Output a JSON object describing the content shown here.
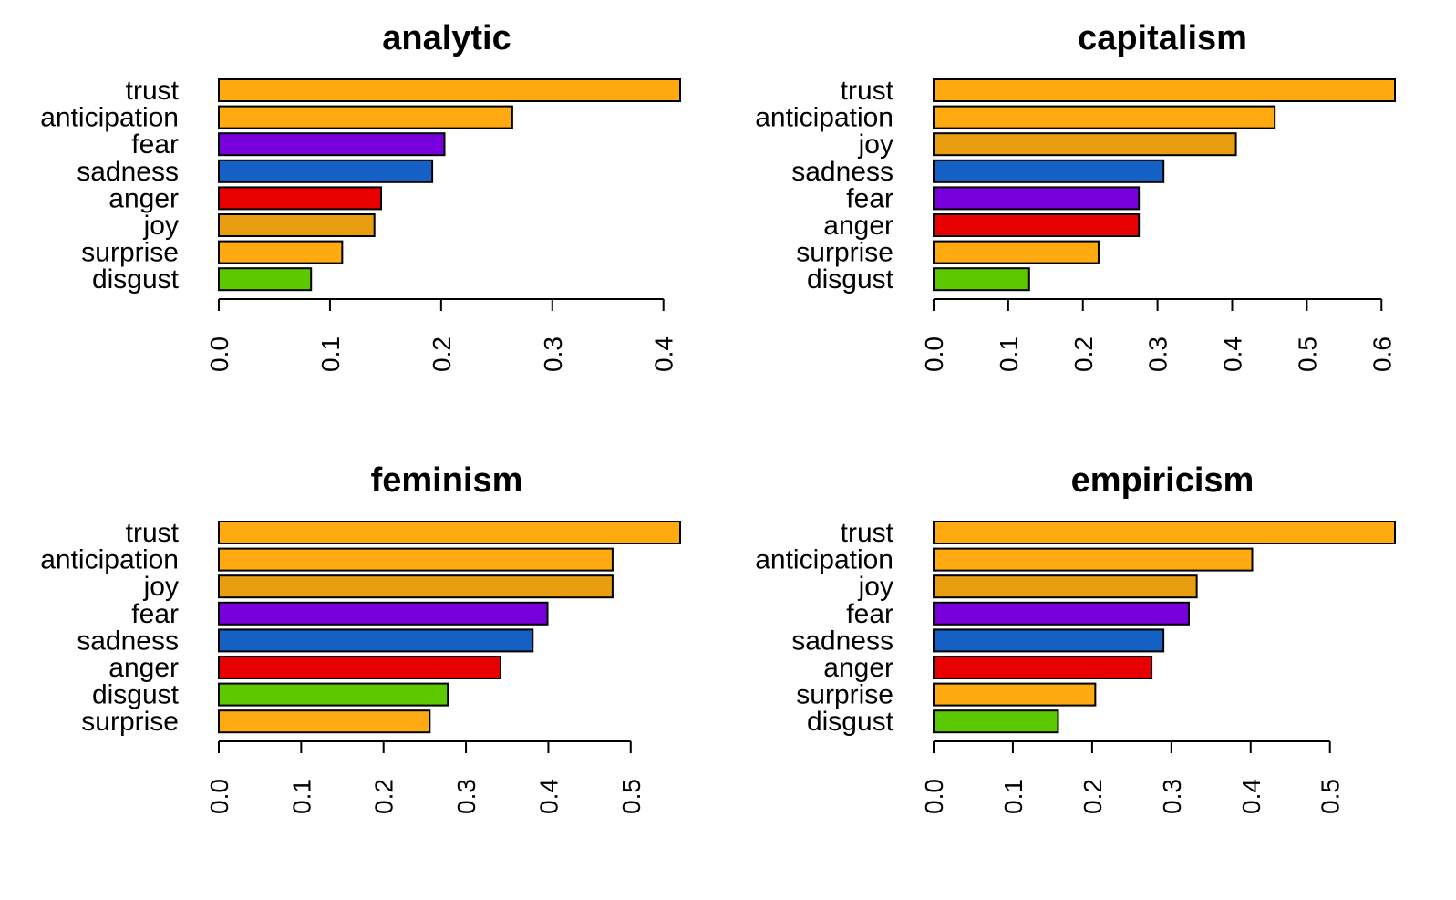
{
  "colors": {
    "trust": "#FFAA11",
    "anticipation": "#FFAA11",
    "surprise": "#FFAA11",
    "joy": "#E99E11",
    "fear": "#7700DD",
    "sadness": "#1560C4",
    "anger": "#E80000",
    "disgust": "#5CC800"
  },
  "chart_data": [
    {
      "type": "bar",
      "orientation": "horizontal",
      "title": "analytic",
      "categories": [
        "trust",
        "anticipation",
        "fear",
        "sadness",
        "anger",
        "joy",
        "surprise",
        "disgust"
      ],
      "values": [
        0.415,
        0.264,
        0.203,
        0.192,
        0.146,
        0.14,
        0.111,
        0.083
      ],
      "xlim": [
        0,
        0.415
      ],
      "ticks": [
        0.0,
        0.1,
        0.2,
        0.3,
        0.4
      ],
      "tick_labels": [
        "0.0",
        "0.1",
        "0.2",
        "0.3",
        "0.4"
      ]
    },
    {
      "type": "bar",
      "orientation": "horizontal",
      "title": "capitalism",
      "categories": [
        "trust",
        "anticipation",
        "joy",
        "sadness",
        "fear",
        "anger",
        "surprise",
        "disgust"
      ],
      "values": [
        0.618,
        0.457,
        0.405,
        0.308,
        0.275,
        0.275,
        0.221,
        0.128
      ],
      "xlim": [
        0,
        0.618
      ],
      "ticks": [
        0.0,
        0.1,
        0.2,
        0.3,
        0.4,
        0.5,
        0.6
      ],
      "tick_labels": [
        "0.0",
        "0.1",
        "0.2",
        "0.3",
        "0.4",
        "0.5",
        "0.6"
      ]
    },
    {
      "type": "bar",
      "orientation": "horizontal",
      "title": "feminism",
      "categories": [
        "trust",
        "anticipation",
        "joy",
        "fear",
        "sadness",
        "anger",
        "disgust",
        "surprise"
      ],
      "values": [
        0.56,
        0.478,
        0.478,
        0.399,
        0.381,
        0.342,
        0.278,
        0.256
      ],
      "xlim": [
        0,
        0.56
      ],
      "ticks": [
        0.0,
        0.1,
        0.2,
        0.3,
        0.4,
        0.5
      ],
      "tick_labels": [
        "0.0",
        "0.1",
        "0.2",
        "0.3",
        "0.4",
        "0.5"
      ]
    },
    {
      "type": "bar",
      "orientation": "horizontal",
      "title": "empiricism",
      "categories": [
        "trust",
        "anticipation",
        "joy",
        "fear",
        "sadness",
        "anger",
        "surprise",
        "disgust"
      ],
      "values": [
        0.582,
        0.402,
        0.332,
        0.322,
        0.29,
        0.275,
        0.204,
        0.157
      ],
      "xlim": [
        0,
        0.582
      ],
      "ticks": [
        0.0,
        0.1,
        0.2,
        0.3,
        0.4,
        0.5
      ],
      "tick_labels": [
        "0.0",
        "0.1",
        "0.2",
        "0.3",
        "0.4",
        "0.5"
      ]
    }
  ]
}
